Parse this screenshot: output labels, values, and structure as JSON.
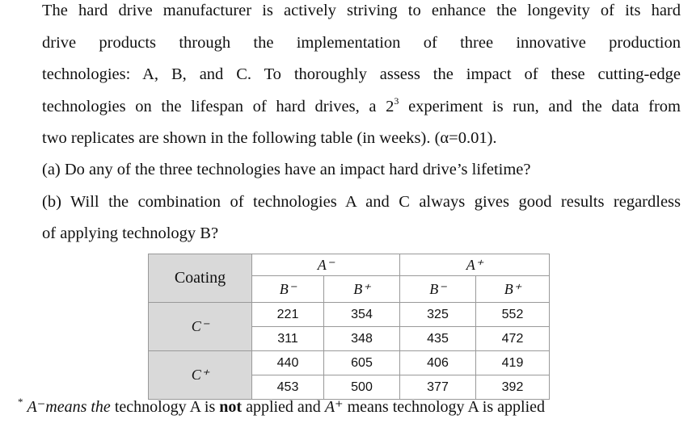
{
  "problem": {
    "lines": [
      "The hard drive manufacturer is actively striving to enhance the longevity of its hard",
      "drive products through the implementation of three innovative production",
      "technologies: A, B, and C. To thoroughly assess the impact of these cutting-edge",
      "technologies on the lifespan of hard drives, a 2",
      "two replicates are shown in the following table (in weeks). (α=0.01)."
    ],
    "exponent": "3",
    "line4_rest": " experiment is run, and the data from"
  },
  "questions": {
    "a": "(a) Do any of the three technologies have an impact hard drive’s lifetime?",
    "b_line1": "(b) Will the combination of technologies A and C always gives good results regardless",
    "b_line2": "of applying technology B?"
  },
  "table": {
    "corner": "Coating",
    "a_minus": "A⁻",
    "a_plus": "A⁺",
    "sub": [
      "B⁻",
      "B⁺",
      "B⁻",
      "B⁺"
    ],
    "rows": [
      {
        "label": "C⁻",
        "values": [
          [
            "221",
            "354",
            "325",
            "552"
          ],
          [
            "311",
            "348",
            "435",
            "472"
          ]
        ]
      },
      {
        "label": "C⁺",
        "values": [
          [
            "440",
            "605",
            "406",
            "419"
          ],
          [
            "453",
            "500",
            "377",
            "392"
          ]
        ]
      }
    ]
  },
  "footnote": {
    "asterisk": "*",
    "part1": "A⁻means the",
    "part2": " technology A is ",
    "bold": "not",
    "part3": " applied and ",
    "part4": "A⁺",
    "part5": " means technology A is applied"
  }
}
